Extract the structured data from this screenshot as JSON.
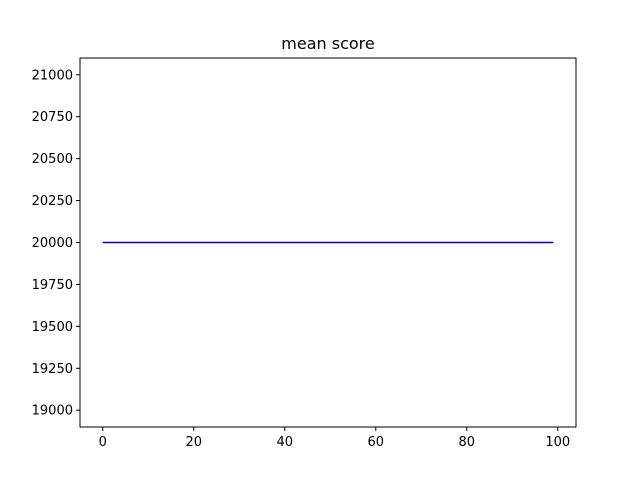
{
  "chart_data": {
    "type": "line",
    "title": "mean score",
    "xlabel": "",
    "ylabel": "",
    "xlim": [
      -5,
      104
    ],
    "ylim": [
      18900,
      21100
    ],
    "grid": false,
    "x_ticks": [
      0,
      20,
      40,
      60,
      80,
      100
    ],
    "y_ticks": [
      19000,
      19250,
      19500,
      19750,
      20000,
      20250,
      20500,
      20750,
      21000
    ],
    "series": [
      {
        "color": "#0000cc",
        "x": [
          0,
          99
        ],
        "y": [
          20000,
          20000
        ]
      }
    ]
  }
}
